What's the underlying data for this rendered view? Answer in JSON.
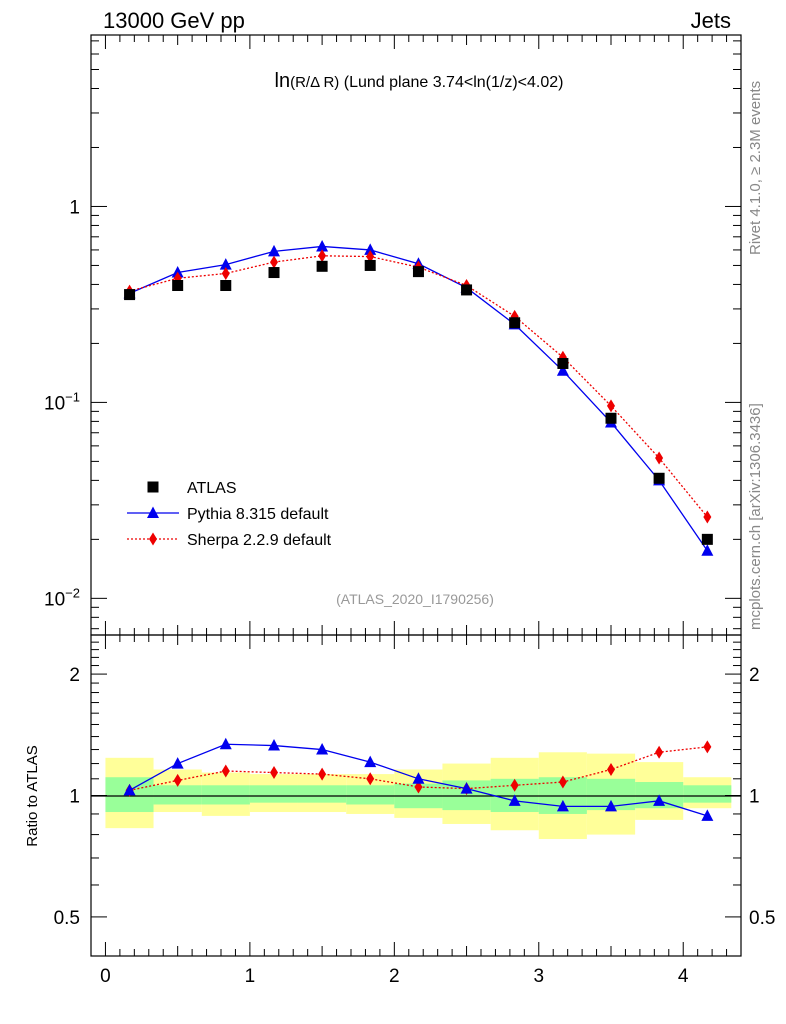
{
  "header": {
    "left": "13000 GeV pp",
    "right": "Jets"
  },
  "side_text": {
    "rivet": "Rivet 4.1.0, ≥ 2.3M events",
    "mcplots": "mcplots.cern.ch [arXiv:1306.3436]"
  },
  "chart_data": [
    {
      "type": "scatter",
      "panel": "main",
      "title_prefix": "ln",
      "title_frac": "(R/Δ R)",
      "title_rest": " (Lund plane 3.74<ln(1/z)<4.02)",
      "watermark": "(ATLAS_2020_I1790256)",
      "yscale": "log",
      "ylim": [
        0.0065,
        7.5
      ],
      "xlim": [
        -0.1,
        4.4
      ],
      "y_tick_labels": [
        {
          "value": 1,
          "base": "1",
          "exp": ""
        },
        {
          "value": 0.1,
          "base": "10",
          "exp": "−1"
        },
        {
          "value": 0.01,
          "base": "10",
          "exp": "−2"
        }
      ],
      "legend": {
        "placement": "lower-left"
      },
      "x": [
        0.167,
        0.5,
        0.833,
        1.167,
        1.5,
        1.833,
        2.167,
        2.5,
        2.833,
        3.167,
        3.5,
        3.833,
        4.167
      ],
      "series": [
        {
          "name": "ATLAS",
          "marker": "square",
          "color": "#000000",
          "line": "none",
          "values": [
            0.355,
            0.395,
            0.395,
            0.46,
            0.495,
            0.5,
            0.465,
            0.375,
            0.255,
            0.158,
            0.083,
            0.041,
            0.02
          ]
        },
        {
          "name": "Pythia 8.315 default",
          "marker": "triangle",
          "color": "#0000ee",
          "line": "solid",
          "values": [
            0.36,
            0.46,
            0.505,
            0.59,
            0.625,
            0.6,
            0.51,
            0.385,
            0.25,
            0.145,
            0.079,
            0.04,
            0.0175
          ]
        },
        {
          "name": "Sherpa 2.2.9 default",
          "marker": "diamond",
          "color": "#ee0000",
          "line": "dotted",
          "values": [
            0.37,
            0.43,
            0.455,
            0.52,
            0.56,
            0.555,
            0.49,
            0.395,
            0.275,
            0.17,
            0.096,
            0.052,
            0.026
          ]
        }
      ]
    },
    {
      "type": "scatter",
      "panel": "ratio",
      "ylabel": "Ratio to ATLAS",
      "yscale": "log",
      "ylim": [
        0.4,
        2.5
      ],
      "xlim": [
        -0.1,
        4.4
      ],
      "y_tick_labels": [
        {
          "value": 2,
          "label": "2"
        },
        {
          "value": 1,
          "label": "1"
        },
        {
          "value": 0.5,
          "label": "0.5"
        }
      ],
      "x_tick_labels": [
        {
          "value": 0,
          "label": "0"
        },
        {
          "value": 1,
          "label": "1"
        },
        {
          "value": 2,
          "label": "2"
        },
        {
          "value": 3,
          "label": "3"
        },
        {
          "value": 4,
          "label": "4"
        }
      ],
      "x": [
        0.167,
        0.5,
        0.833,
        1.167,
        1.5,
        1.833,
        2.167,
        2.5,
        2.833,
        3.167,
        3.5,
        3.833,
        4.167
      ],
      "bin_edges": [
        0,
        0.333,
        0.667,
        1.0,
        1.333,
        1.667,
        2.0,
        2.333,
        2.667,
        3.0,
        3.333,
        3.667,
        4.0,
        4.333
      ],
      "bands": {
        "stat_color": "#99ff99",
        "total_color": "#ffff99",
        "stat": [
          [
            0.91,
            1.11
          ],
          [
            0.95,
            1.06
          ],
          [
            0.95,
            1.06
          ],
          [
            0.96,
            1.06
          ],
          [
            0.96,
            1.06
          ],
          [
            0.95,
            1.06
          ],
          [
            0.93,
            1.07
          ],
          [
            0.92,
            1.09
          ],
          [
            0.91,
            1.1
          ],
          [
            0.9,
            1.11
          ],
          [
            0.92,
            1.1
          ],
          [
            0.93,
            1.08
          ],
          [
            0.96,
            1.06
          ]
        ],
        "total": [
          [
            0.83,
            1.24
          ],
          [
            0.91,
            1.16
          ],
          [
            0.89,
            1.14
          ],
          [
            0.91,
            1.13
          ],
          [
            0.91,
            1.13
          ],
          [
            0.9,
            1.13
          ],
          [
            0.88,
            1.16
          ],
          [
            0.85,
            1.2
          ],
          [
            0.82,
            1.24
          ],
          [
            0.78,
            1.28
          ],
          [
            0.8,
            1.27
          ],
          [
            0.87,
            1.21
          ],
          [
            0.93,
            1.11
          ]
        ]
      },
      "series": [
        {
          "name": "Pythia 8.315 default",
          "marker": "triangle",
          "color": "#0000ee",
          "line": "solid",
          "values": [
            1.03,
            1.2,
            1.34,
            1.33,
            1.3,
            1.21,
            1.1,
            1.04,
            0.97,
            0.94,
            0.94,
            0.97,
            0.89
          ]
        },
        {
          "name": "Sherpa 2.2.9 default",
          "marker": "diamond",
          "color": "#ee0000",
          "line": "dotted",
          "values": [
            1.03,
            1.09,
            1.15,
            1.14,
            1.13,
            1.1,
            1.05,
            1.04,
            1.06,
            1.08,
            1.16,
            1.28,
            1.32
          ]
        }
      ]
    }
  ]
}
